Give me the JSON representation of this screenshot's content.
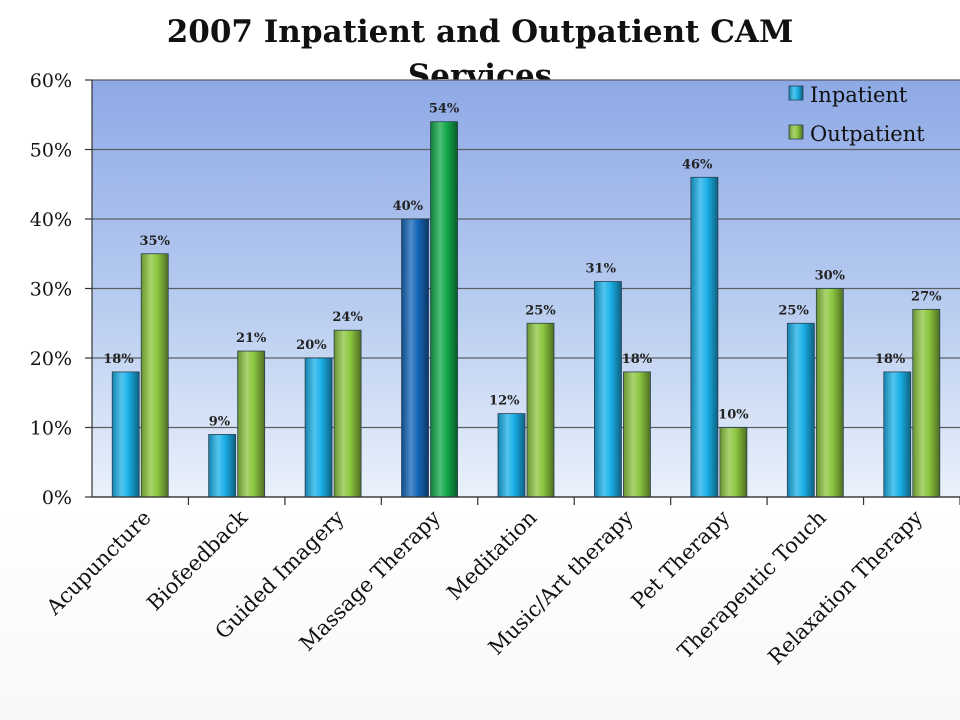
{
  "chart_data": {
    "type": "bar",
    "title": "2007 Inpatient and Outpatient CAM Services",
    "categories": [
      "Acupuncture",
      "Biofeedback",
      "Guided Imagery",
      "Massage Therapy",
      "Meditation",
      "Music/Art therapy",
      "Pet Therapy",
      "Therapeutic Touch",
      "Relaxation Therapy"
    ],
    "series": [
      {
        "name": "Inpatient",
        "values": [
          18,
          9,
          20,
          40,
          12,
          31,
          46,
          25,
          18
        ],
        "color": "#1ab0e8"
      },
      {
        "name": "Outpatient",
        "values": [
          35,
          21,
          24,
          54,
          25,
          18,
          10,
          30,
          27
        ],
        "color": "#8cc63f"
      }
    ],
    "highlight_category": "Massage Therapy",
    "highlight_colors": {
      "Inpatient": "#1466b8",
      "Outpatient": "#13a84a"
    },
    "ylim": [
      0,
      60
    ],
    "yticks": [
      0,
      10,
      20,
      30,
      40,
      50,
      60
    ],
    "ytick_labels": [
      "0%",
      "10%",
      "20%",
      "30%",
      "40%",
      "50%",
      "60%"
    ],
    "value_suffix": "%",
    "grid": true,
    "legend_position": "top-right",
    "xlabel": "",
    "ylabel": ""
  }
}
